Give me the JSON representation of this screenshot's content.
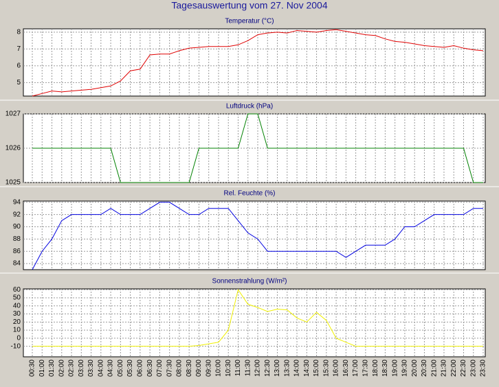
{
  "title": "Tagesauswertung vom 27. Nov 2004",
  "categories": [
    "00:30",
    "01:00",
    "01:30",
    "02:00",
    "02:30",
    "03:00",
    "03:30",
    "04:00",
    "04:30",
    "05:00",
    "05:30",
    "06:00",
    "06:30",
    "07:00",
    "07:30",
    "08:00",
    "08:30",
    "09:00",
    "09:30",
    "10:00",
    "10:30",
    "11:00",
    "11:30",
    "12:00",
    "12:30",
    "13:00",
    "13:30",
    "14:00",
    "14:30",
    "15:00",
    "15:30",
    "16:00",
    "16:30",
    "17:00",
    "17:30",
    "18:00",
    "18:30",
    "19:00",
    "19:30",
    "20:00",
    "20:30",
    "21:00",
    "21:30",
    "22:00",
    "22:30",
    "23:00",
    "23:30"
  ],
  "chart_data": [
    {
      "type": "line",
      "title": "Temperatur (°C)",
      "color": "#e00000",
      "ylim": [
        4.2,
        8.2
      ],
      "yticks": [
        5,
        6,
        7,
        8
      ],
      "grid": true,
      "values": [
        4.2,
        4.35,
        4.5,
        4.45,
        4.5,
        4.55,
        4.6,
        4.7,
        4.8,
        5.1,
        5.7,
        5.8,
        6.65,
        6.7,
        6.7,
        6.9,
        7.05,
        7.1,
        7.15,
        7.15,
        7.15,
        7.25,
        7.5,
        7.85,
        7.95,
        8.0,
        7.95,
        8.1,
        8.05,
        8.0,
        8.1,
        8.15,
        8.05,
        7.95,
        7.85,
        7.8,
        7.6,
        7.45,
        7.4,
        7.3,
        7.2,
        7.15,
        7.1,
        7.2,
        7.05,
        6.95,
        6.9
      ]
    },
    {
      "type": "line",
      "title": "Luftdruck (hPa)",
      "color": "#008000",
      "ylim": [
        1025,
        1027
      ],
      "yticks": [
        1025,
        1026,
        1027
      ],
      "grid": true,
      "values": [
        1026,
        1026,
        1026,
        1026,
        1026,
        1026,
        1026,
        1026,
        1026,
        1025,
        1025,
        1025,
        1025,
        1025,
        1025,
        1025,
        1025,
        1026,
        1026,
        1026,
        1026,
        1026,
        1027,
        1027,
        1026,
        1026,
        1026,
        1026,
        1026,
        1026,
        1026,
        1026,
        1026,
        1026,
        1026,
        1026,
        1026,
        1026,
        1026,
        1026,
        1026,
        1026,
        1026,
        1026,
        1026,
        1025,
        1025
      ]
    },
    {
      "type": "line",
      "title": "Rel. Feuchte (%)",
      "color": "#0000e0",
      "ylim": [
        83,
        94.2
      ],
      "yticks": [
        84,
        86,
        88,
        90,
        92,
        94
      ],
      "grid": true,
      "values": [
        83,
        86,
        88,
        91,
        92,
        92,
        92,
        92,
        93,
        92,
        92,
        92,
        93,
        94,
        94,
        93,
        92,
        92,
        93,
        93,
        93,
        91,
        89,
        88,
        86,
        86,
        86,
        86,
        86,
        86,
        86,
        86,
        85,
        86,
        87,
        87,
        87,
        88,
        90,
        90,
        91,
        92,
        92,
        92,
        92,
        93,
        93
      ]
    },
    {
      "type": "line",
      "title": "Sonnenstrahlung (W/m²)",
      "color": "#f0f000",
      "ylim": [
        -23,
        61
      ],
      "yticks": [
        -10,
        0,
        10,
        20,
        30,
        40,
        50,
        60
      ],
      "grid": true,
      "values": [
        -10,
        -10,
        -10,
        -10,
        -10,
        -10,
        -10,
        -10,
        -10,
        -10,
        -10,
        -10,
        -10,
        -10,
        -10,
        -10,
        -10,
        -9,
        -7,
        -5,
        10,
        60,
        42,
        38,
        33,
        36,
        35,
        25,
        20,
        32,
        22,
        0,
        -5,
        -10,
        -10,
        -10,
        -10,
        -10,
        -10,
        -10,
        -10,
        -10,
        -10,
        -10,
        -10,
        -10,
        -10
      ]
    }
  ]
}
